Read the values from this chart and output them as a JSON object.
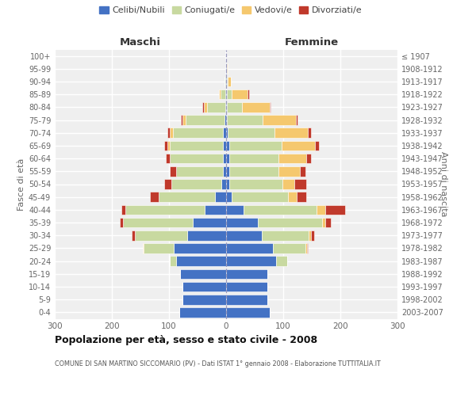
{
  "age_groups": [
    "0-4",
    "5-9",
    "10-14",
    "15-19",
    "20-24",
    "25-29",
    "30-34",
    "35-39",
    "40-44",
    "45-49",
    "50-54",
    "55-59",
    "60-64",
    "65-69",
    "70-74",
    "75-79",
    "80-84",
    "85-89",
    "90-94",
    "95-99",
    "100+"
  ],
  "birth_years": [
    "2003-2007",
    "1998-2002",
    "1993-1997",
    "1988-1992",
    "1983-1987",
    "1978-1982",
    "1973-1977",
    "1968-1972",
    "1963-1967",
    "1958-1962",
    "1953-1957",
    "1948-1952",
    "1943-1947",
    "1938-1942",
    "1933-1937",
    "1928-1932",
    "1923-1927",
    "1918-1922",
    "1913-1917",
    "1908-1912",
    "≤ 1907"
  ],
  "male_celibi": [
    82,
    76,
    77,
    80,
    87,
    92,
    68,
    58,
    38,
    20,
    8,
    6,
    6,
    6,
    5,
    3,
    2,
    2,
    1,
    1,
    1
  ],
  "male_coniugati": [
    0,
    0,
    0,
    0,
    12,
    52,
    92,
    122,
    138,
    98,
    88,
    82,
    92,
    92,
    88,
    68,
    32,
    8,
    2,
    0,
    0
  ],
  "male_vedovi": [
    0,
    0,
    0,
    0,
    0,
    2,
    0,
    0,
    0,
    0,
    0,
    0,
    0,
    5,
    5,
    5,
    5,
    2,
    0,
    0,
    0
  ],
  "male_divorziati": [
    0,
    0,
    0,
    0,
    0,
    0,
    5,
    6,
    8,
    15,
    12,
    10,
    8,
    6,
    5,
    3,
    2,
    0,
    0,
    0,
    0
  ],
  "female_nubili": [
    77,
    72,
    72,
    72,
    87,
    82,
    62,
    56,
    30,
    10,
    6,
    5,
    5,
    5,
    3,
    2,
    2,
    2,
    1,
    1,
    0
  ],
  "female_coniugate": [
    0,
    0,
    0,
    0,
    20,
    57,
    82,
    112,
    128,
    98,
    92,
    87,
    87,
    92,
    82,
    62,
    26,
    8,
    2,
    0,
    0
  ],
  "female_vedove": [
    0,
    0,
    0,
    0,
    0,
    2,
    5,
    5,
    15,
    16,
    22,
    37,
    48,
    58,
    58,
    58,
    48,
    28,
    5,
    2,
    0
  ],
  "female_divorziate": [
    0,
    0,
    0,
    0,
    0,
    2,
    5,
    10,
    35,
    16,
    20,
    10,
    8,
    8,
    5,
    3,
    2,
    2,
    0,
    0,
    0
  ],
  "col_celibi": "#4472C4",
  "col_coniugati": "#c8d9a0",
  "col_vedovi": "#F5C86E",
  "col_divorziati": "#C0392B",
  "title": "Popolazione per età, sesso e stato civile - 2008",
  "subtitle": "COMUNE DI SAN MARTINO SICCOMARIO (PV) - Dati ISTAT 1° gennaio 2008 - Elaborazione TUTTITALIA.IT",
  "label_maschi": "Maschi",
  "label_femmine": "Femmine",
  "label_fasce": "Fasce di età",
  "label_anni": "Anni di nascita",
  "xlim": 300,
  "bg_color": "#ffffff",
  "plot_bg": "#efefef",
  "grid_color": "#ffffff",
  "legend_labels": [
    "Celibi/Nubili",
    "Coniugati/e",
    "Vedovi/e",
    "Divorziati/e"
  ]
}
